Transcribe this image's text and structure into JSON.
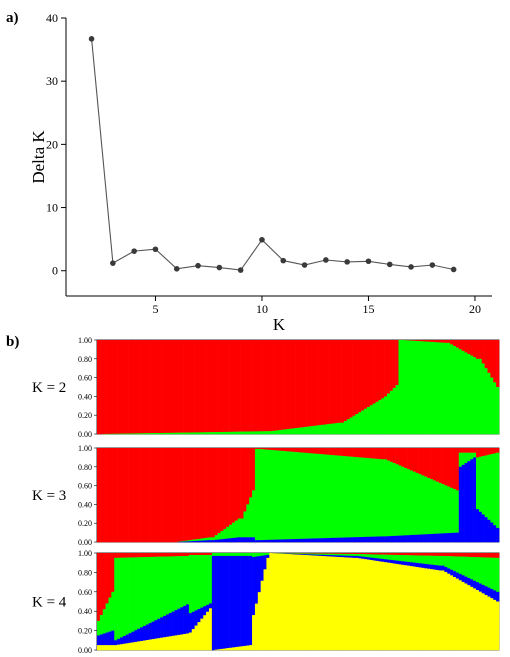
{
  "panels": {
    "a_label": "a)",
    "b_label": "b)"
  },
  "chart_data": [
    {
      "type": "line",
      "panel": "a)",
      "xlabel": "K",
      "ylabel": "Delta K",
      "x": [
        2,
        3,
        4,
        5,
        6,
        7,
        8,
        9,
        10,
        11,
        12,
        13,
        14,
        15,
        16,
        17,
        18,
        19
      ],
      "y": [
        36.7,
        1.2,
        3.1,
        3.4,
        0.3,
        0.8,
        0.5,
        0.1,
        4.9,
        1.6,
        0.9,
        1.7,
        1.4,
        1.5,
        1.0,
        0.6,
        0.9,
        0.2
      ],
      "xticks": [
        5,
        10,
        15,
        20
      ],
      "yticks": [
        0,
        10,
        20,
        30,
        40
      ],
      "xlim": [
        0.8,
        20.8
      ],
      "ylim": [
        -4,
        40
      ],
      "marker_color": "#3a3a3a",
      "line_color": "#555555"
    },
    {
      "type": "stacked_bar",
      "panel": "b)",
      "yticks": [
        "0.00",
        "0.20",
        "0.40",
        "0.60",
        "0.80",
        "1.00"
      ],
      "colors": {
        "red": "#ff0000",
        "green": "#00ff00",
        "blue": "#0000ff",
        "yellow": "#ffff00"
      },
      "individuals": 140,
      "runs": [
        {
          "label": "K = 2",
          "segments": [
            {
              "from": 0,
              "to": 1,
              "red": [
                1.0,
                0.82
              ],
              "green": [
                0.0,
                0.18
              ],
              "blue": [
                0,
                0
              ],
              "yellow": [
                0,
                0
              ]
            },
            {
              "from": 1,
              "to": 20,
              "red": [
                1.0,
                0.99
              ],
              "green": [
                0.0,
                0.01
              ],
              "blue": [
                0,
                0
              ],
              "yellow": [
                0,
                0
              ]
            },
            {
              "from": 20,
              "to": 60,
              "red": [
                0.99,
                0.97
              ],
              "green": [
                0.01,
                0.03
              ],
              "blue": [
                0,
                0
              ],
              "yellow": [
                0,
                0
              ]
            },
            {
              "from": 60,
              "to": 85,
              "red": [
                0.97,
                0.88
              ],
              "green": [
                0.03,
                0.12
              ],
              "blue": [
                0,
                0
              ],
              "yellow": [
                0,
                0
              ]
            },
            {
              "from": 85,
              "to": 100,
              "red": [
                0.88,
                0.62
              ],
              "green": [
                0.12,
                0.38
              ],
              "blue": [
                0,
                0
              ],
              "yellow": [
                0,
                0
              ]
            },
            {
              "from": 100,
              "to": 105,
              "red": [
                0.6,
                0.48
              ],
              "green": [
                0.4,
                0.52
              ],
              "blue": [
                0,
                0
              ],
              "yellow": [
                0,
                0
              ]
            },
            {
              "from": 105,
              "to": 106,
              "red": [
                0.0,
                0.0
              ],
              "green": [
                1.0,
                1.0
              ],
              "blue": [
                0,
                0
              ],
              "yellow": [
                0,
                0
              ]
            },
            {
              "from": 106,
              "to": 122,
              "red": [
                0.0,
                0.03
              ],
              "green": [
                1.0,
                0.97
              ],
              "blue": [
                0,
                0
              ],
              "yellow": [
                0,
                0
              ]
            },
            {
              "from": 122,
              "to": 133,
              "red": [
                0.03,
                0.2
              ],
              "green": [
                0.97,
                0.8
              ],
              "blue": [
                0,
                0
              ],
              "yellow": [
                0,
                0
              ]
            },
            {
              "from": 133,
              "to": 140,
              "red": [
                0.2,
                0.5
              ],
              "green": [
                0.8,
                0.5
              ],
              "blue": [
                0,
                0
              ],
              "yellow": [
                0,
                0
              ]
            }
          ]
        },
        {
          "label": "K = 3",
          "segments": [
            {
              "from": 0,
              "to": 27,
              "red": [
                1.0,
                1.0
              ],
              "green": [
                0.0,
                0.0
              ],
              "blue": [
                0,
                0
              ],
              "yellow": [
                0,
                0
              ]
            },
            {
              "from": 27,
              "to": 40,
              "red": [
                1.0,
                0.95
              ],
              "green": [
                0.0,
                0.03
              ],
              "blue": [
                0.0,
                0.02
              ],
              "yellow": [
                0,
                0
              ]
            },
            {
              "from": 40,
              "to": 50,
              "red": [
                0.95,
                0.75
              ],
              "green": [
                0.03,
                0.2
              ],
              "blue": [
                0.02,
                0.05
              ],
              "yellow": [
                0,
                0
              ]
            },
            {
              "from": 50,
              "to": 55,
              "red": [
                0.75,
                0.45
              ],
              "green": [
                0.2,
                0.5
              ],
              "blue": [
                0.05,
                0.05
              ],
              "yellow": [
                0,
                0
              ]
            },
            {
              "from": 55,
              "to": 56,
              "red": [
                0.01,
                0.01
              ],
              "green": [
                0.97,
                0.97
              ],
              "blue": [
                0.02,
                0.02
              ],
              "yellow": [
                0,
                0
              ]
            },
            {
              "from": 56,
              "to": 100,
              "red": [
                0.01,
                0.12
              ],
              "green": [
                0.97,
                0.82
              ],
              "blue": [
                0.02,
                0.06
              ],
              "yellow": [
                0,
                0
              ]
            },
            {
              "from": 100,
              "to": 126,
              "red": [
                0.12,
                0.45
              ],
              "green": [
                0.82,
                0.45
              ],
              "blue": [
                0.06,
                0.1
              ],
              "yellow": [
                0,
                0
              ]
            },
            {
              "from": 126,
              "to": 132,
              "red": [
                0.05,
                0.05
              ],
              "green": [
                0.15,
                0.05
              ],
              "blue": [
                0.8,
                0.9
              ],
              "yellow": [
                0,
                0
              ]
            },
            {
              "from": 132,
              "to": 140,
              "red": [
                0.1,
                0.05
              ],
              "green": [
                0.55,
                0.8
              ],
              "blue": [
                0.35,
                0.15
              ],
              "yellow": [
                0,
                0
              ]
            }
          ]
        },
        {
          "label": "K = 4",
          "segments": [
            {
              "from": 0,
              "to": 6,
              "red": [
                0.7,
                0.4
              ],
              "green": [
                0.15,
                0.4
              ],
              "blue": [
                0.1,
                0.15
              ],
              "yellow": [
                0.05,
                0.05
              ]
            },
            {
              "from": 6,
              "to": 32,
              "red": [
                0.05,
                0.03
              ],
              "green": [
                0.85,
                0.5
              ],
              "blue": [
                0.05,
                0.3
              ],
              "yellow": [
                0.05,
                0.17
              ]
            },
            {
              "from": 32,
              "to": 40,
              "red": [
                0.02,
                0.02
              ],
              "green": [
                0.6,
                0.5
              ],
              "blue": [
                0.2,
                0.05
              ],
              "yellow": [
                0.18,
                0.43
              ]
            },
            {
              "from": 40,
              "to": 54,
              "red": [
                0.0,
                0.0
              ],
              "green": [
                0.03,
                0.03
              ],
              "blue": [
                0.97,
                0.92
              ],
              "yellow": [
                0.0,
                0.05
              ]
            },
            {
              "from": 54,
              "to": 60,
              "red": [
                0.0,
                0.0
              ],
              "green": [
                0.04,
                0.02
              ],
              "blue": [
                0.6,
                0.03
              ],
              "yellow": [
                0.36,
                0.95
              ]
            },
            {
              "from": 60,
              "to": 90,
              "red": [
                0.0,
                0.01
              ],
              "green": [
                0.0,
                0.02
              ],
              "blue": [
                0.0,
                0.02
              ],
              "yellow": [
                1.0,
                0.95
              ]
            },
            {
              "from": 90,
              "to": 120,
              "red": [
                0.01,
                0.03
              ],
              "green": [
                0.02,
                0.1
              ],
              "blue": [
                0.02,
                0.05
              ],
              "yellow": [
                0.95,
                0.82
              ]
            },
            {
              "from": 120,
              "to": 140,
              "red": [
                0.03,
                0.05
              ],
              "green": [
                0.1,
                0.35
              ],
              "blue": [
                0.05,
                0.1
              ],
              "yellow": [
                0.82,
                0.5
              ]
            }
          ]
        }
      ]
    }
  ]
}
